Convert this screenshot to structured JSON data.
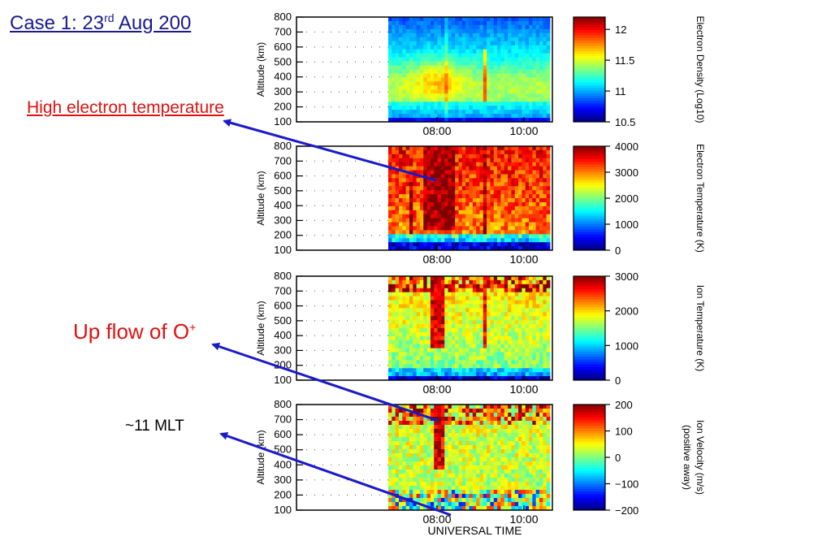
{
  "slide": {
    "title_main": "Case 1: 23",
    "title_sup": "rd",
    "title_tail": " Aug 200",
    "annotation_hot": "High electron temperature",
    "annotation_up_main": "Up flow of O",
    "annotation_up_sup": "+",
    "annotation_mlt": "~11 MLT",
    "arrow_color": "#1a1acc"
  },
  "chart_data": [
    {
      "type": "heatmap",
      "ylabel": "Altitude (km)",
      "yticks": [
        800,
        700,
        600,
        500,
        400,
        300,
        200,
        100
      ],
      "ylim": [
        100,
        800
      ],
      "xticks": [
        "08:00",
        "10:00"
      ],
      "colorbar_label": "Electron Density (Log10)",
      "colorbar_ticks": [
        "12",
        "11.5",
        "11",
        "10.5"
      ],
      "colorbar_range": [
        10.5,
        12.2
      ],
      "colormap": "jet"
    },
    {
      "type": "heatmap",
      "ylabel": "Altitude (km)",
      "yticks": [
        800,
        700,
        600,
        500,
        400,
        300,
        200,
        100
      ],
      "ylim": [
        100,
        800
      ],
      "xticks": [
        "08:00",
        "10:00"
      ],
      "colorbar_label": "Electron Temperature (K)",
      "colorbar_ticks": [
        "4000",
        "3000",
        "2000",
        "1000",
        "0"
      ],
      "colorbar_range": [
        0,
        4000
      ],
      "colormap": "jet"
    },
    {
      "type": "heatmap",
      "ylabel": "Altitude (km)",
      "yticks": [
        800,
        700,
        600,
        500,
        400,
        300,
        200,
        100
      ],
      "ylim": [
        100,
        800
      ],
      "xticks": [
        "08:00",
        "10:00"
      ],
      "colorbar_label": "Ion Temperature (K)",
      "colorbar_ticks": [
        "3000",
        "2000",
        "1000",
        "0"
      ],
      "colorbar_range": [
        0,
        3000
      ],
      "colormap": "jet"
    },
    {
      "type": "heatmap",
      "ylabel": "Altitude (km)",
      "yticks": [
        800,
        700,
        600,
        500,
        400,
        300,
        200,
        100
      ],
      "ylim": [
        100,
        800
      ],
      "xticks": [
        "08:00",
        "10:00"
      ],
      "xlabel": "UNIVERSAL TIME",
      "colorbar_label": "Ion Velocity (m/s)",
      "colorbar_label2": "(positive away)",
      "colorbar_ticks": [
        "200",
        "100",
        "0",
        "-100",
        "-200"
      ],
      "colorbar_range": [
        -200,
        200
      ],
      "colormap": "jet"
    }
  ]
}
